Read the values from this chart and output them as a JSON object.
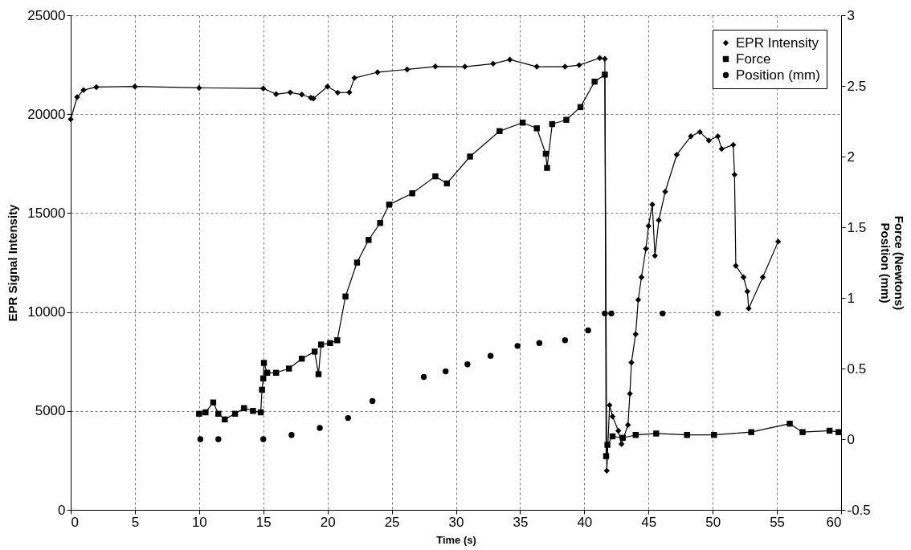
{
  "chart_data": {
    "type": "line",
    "xlabel": "Time (s)",
    "ylabel": "EPR Signal Intensity",
    "y2label": "Force (Newtons)\nPosition (mm)",
    "xlim": [
      0,
      60
    ],
    "xticks": [
      0,
      5,
      10,
      15,
      20,
      25,
      30,
      35,
      40,
      45,
      50,
      55,
      60
    ],
    "ylim": [
      0,
      25000
    ],
    "yticks": [
      0,
      5000,
      10000,
      15000,
      20000,
      25000
    ],
    "y2lim": [
      -0.5,
      3
    ],
    "y2ticks": [
      -0.5,
      0,
      0.5,
      1,
      1.5,
      2,
      2.5,
      3
    ],
    "grid": true,
    "legend": "top right",
    "line_style": "solid",
    "series": [
      {
        "name": "EPR Intensity",
        "marker": "diamond",
        "color": "#000000",
        "x": [
          0,
          0.5,
          1,
          2,
          5,
          10,
          15,
          16,
          17.1,
          18,
          18.7,
          18.9,
          20,
          20.8,
          21.7,
          22.1,
          23.9,
          26.2,
          28.4,
          30.7,
          32.9,
          34.2,
          36.3,
          38.5,
          39.6,
          41.2,
          41.6,
          41.75,
          41.97,
          42.2,
          42.65,
          42.9,
          43.4,
          43.55,
          43.67,
          44.0,
          44.2,
          44.45,
          44.8,
          45.0,
          45.3,
          45.5,
          45.8,
          46.3,
          47.2,
          48.3,
          49.0,
          49.7,
          50.4,
          50.7,
          51.6,
          51.7,
          51.8,
          52.4,
          52.7,
          52.8,
          53.9,
          55.1
        ],
        "values": [
          19740,
          20860,
          21220,
          21370,
          21400,
          21330,
          21300,
          21010,
          21100,
          20990,
          20830,
          20790,
          21400,
          21090,
          21100,
          21830,
          22120,
          22260,
          22410,
          22400,
          22550,
          22760,
          22400,
          22400,
          22480,
          22840,
          22800,
          1980,
          5290,
          4720,
          4000,
          3330,
          4290,
          5870,
          7450,
          8880,
          10610,
          11760,
          13200,
          14350,
          15430,
          12840,
          14640,
          16080,
          17950,
          18880,
          19100,
          18670,
          18880,
          18240,
          18450,
          16940,
          12340,
          11760,
          11040,
          10180,
          11760,
          13560
        ]
      },
      {
        "name": "Force",
        "marker": "square",
        "axis": "y2",
        "color": "#000000",
        "x": [
          10,
          10.5,
          11.1,
          11.5,
          12,
          12.8,
          13.5,
          14.2,
          14.8,
          14.9,
          15,
          15.05,
          15.3,
          16,
          17,
          18,
          19,
          19.3,
          19.5,
          20.2,
          20.76,
          21.4,
          22.3,
          23.2,
          24.1,
          24.8,
          26.6,
          28.4,
          29.3,
          31.1,
          33.4,
          35.2,
          36.3,
          37.0,
          37.1,
          37.5,
          38.6,
          39.7,
          40.8,
          41.6,
          41.7,
          41.8,
          42.2,
          43,
          44,
          45.6,
          48,
          50.1,
          53,
          56.0,
          57,
          59.1,
          59.8
        ],
        "values": [
          0.18,
          0.19,
          0.26,
          0.18,
          0.14,
          0.18,
          0.22,
          0.2,
          0.19,
          0.35,
          0.43,
          0.54,
          0.47,
          0.47,
          0.5,
          0.57,
          0.62,
          0.46,
          0.67,
          0.68,
          0.7,
          1.01,
          1.25,
          1.41,
          1.53,
          1.66,
          1.74,
          1.86,
          1.81,
          2.0,
          2.18,
          2.24,
          2.2,
          2.02,
          1.92,
          2.23,
          2.26,
          2.35,
          2.53,
          2.58,
          -0.12,
          -0.04,
          0.02,
          0.01,
          0.03,
          0.04,
          0.03,
          0.03,
          0.05,
          0.11,
          0.05,
          0.06,
          0.05
        ]
      },
      {
        "name": "Position (mm)",
        "type": "scatter",
        "marker": "circle",
        "axis": "y2",
        "color": "#000000",
        "x": [
          10.1,
          11.5,
          15,
          17.2,
          19.4,
          21.6,
          23.5,
          27.5,
          29.2,
          30.9,
          32.7,
          34.8,
          36.5,
          38.5,
          40.3,
          41.6,
          42.1,
          46.1,
          50.4
        ],
        "values": [
          0,
          0,
          0,
          0.03,
          0.08,
          0.15,
          0.27,
          0.44,
          0.48,
          0.53,
          0.59,
          0.66,
          0.68,
          0.7,
          0.77,
          0.89,
          0.89,
          0.89,
          0.89
        ]
      }
    ]
  }
}
